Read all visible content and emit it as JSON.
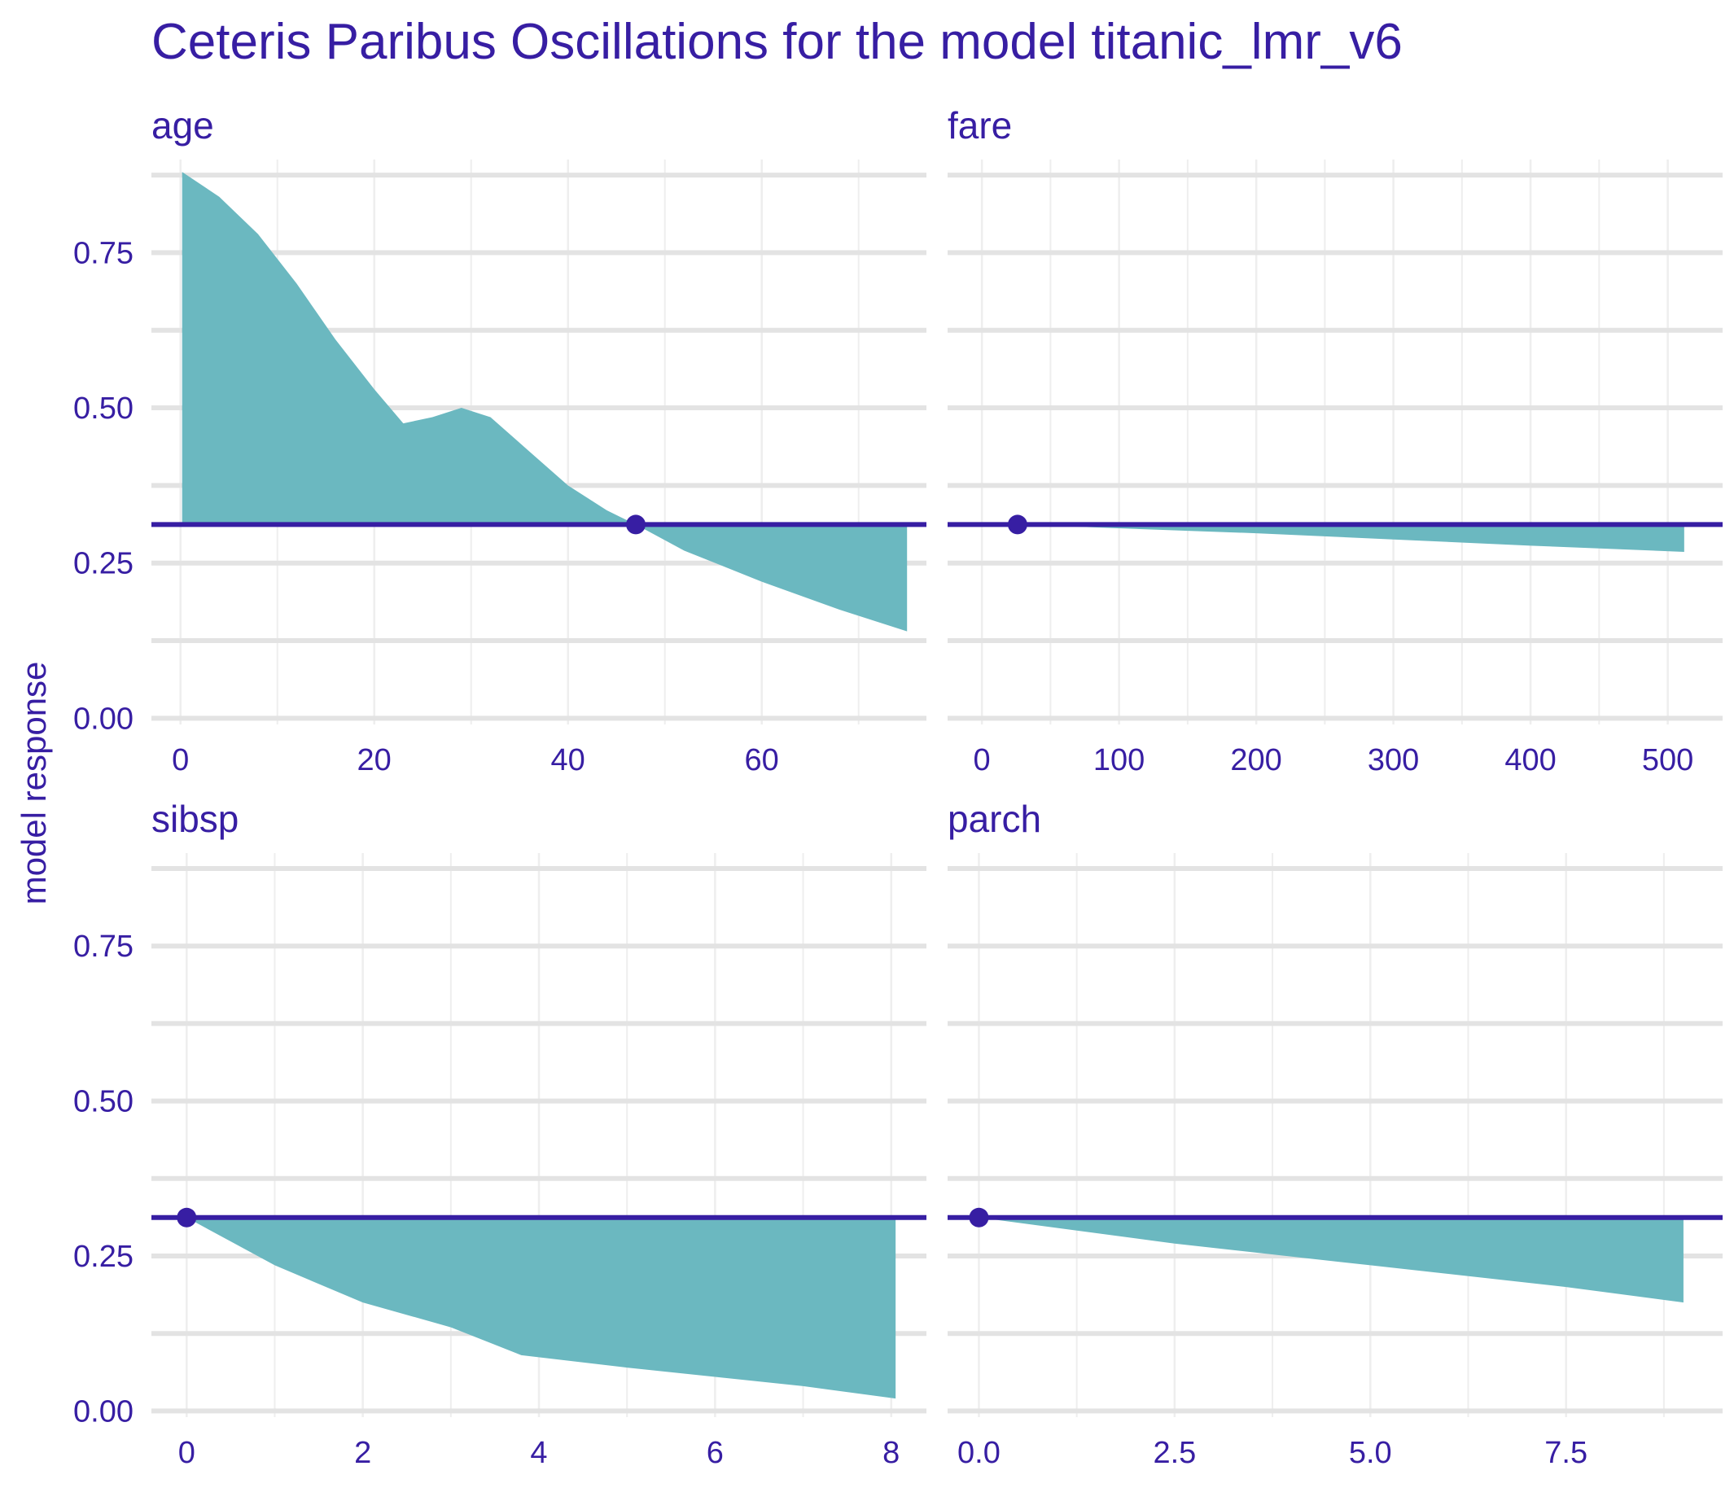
{
  "colors": {
    "text": "#371ea3",
    "area": "#6bb8c0",
    "line": "#371ea3",
    "grid_major": "#e3e3e3",
    "grid_minor": "#eeeeee"
  },
  "chart_data": {
    "type": "area",
    "title": "Ceteris Paribus Oscillations for the model titanic_lmr_v6",
    "ylabel": "model response",
    "baseline": 0.312,
    "ylim": [
      -0.01,
      0.9
    ],
    "y_ticks": [
      0,
      0.25,
      0.5,
      0.75
    ],
    "y_tick_labels": [
      "0.00",
      "0.25",
      "0.50",
      "0.75"
    ],
    "legend": "none",
    "grid": true,
    "panels": [
      {
        "variable": "age",
        "xlim": [
          -3,
          77
        ],
        "x_ticks": [
          0,
          20,
          40,
          60
        ],
        "x_tick_labels": [
          "0",
          "20",
          "40",
          "60"
        ],
        "observation": {
          "x": 47,
          "y": 0.312
        },
        "profile": [
          {
            "x": 0.17,
            "y": 0.88
          },
          {
            "x": 4,
            "y": 0.84
          },
          {
            "x": 8,
            "y": 0.78
          },
          {
            "x": 12,
            "y": 0.7
          },
          {
            "x": 16,
            "y": 0.61
          },
          {
            "x": 20,
            "y": 0.53
          },
          {
            "x": 23,
            "y": 0.475
          },
          {
            "x": 26,
            "y": 0.485
          },
          {
            "x": 29,
            "y": 0.5
          },
          {
            "x": 32,
            "y": 0.485
          },
          {
            "x": 36,
            "y": 0.43
          },
          {
            "x": 40,
            "y": 0.375
          },
          {
            "x": 44,
            "y": 0.335
          },
          {
            "x": 47,
            "y": 0.312
          },
          {
            "x": 52,
            "y": 0.27
          },
          {
            "x": 60,
            "y": 0.22
          },
          {
            "x": 68,
            "y": 0.175
          },
          {
            "x": 75,
            "y": 0.14
          }
        ]
      },
      {
        "variable": "fare",
        "xlim": [
          -25,
          540
        ],
        "x_ticks": [
          0,
          100,
          200,
          300,
          400,
          500
        ],
        "x_tick_labels": [
          "0",
          "100",
          "200",
          "300",
          "400",
          "500"
        ],
        "observation": {
          "x": 26,
          "y": 0.312
        },
        "profile": [
          {
            "x": 26,
            "y": 0.312
          },
          {
            "x": 100,
            "y": 0.306
          },
          {
            "x": 200,
            "y": 0.298
          },
          {
            "x": 300,
            "y": 0.288
          },
          {
            "x": 400,
            "y": 0.278
          },
          {
            "x": 512,
            "y": 0.268
          }
        ]
      },
      {
        "variable": "sibsp",
        "xlim": [
          -0.4,
          8.4
        ],
        "x_ticks": [
          0,
          2,
          4,
          6,
          8
        ],
        "x_tick_labels": [
          "0",
          "2",
          "4",
          "6",
          "8"
        ],
        "observation": {
          "x": 0,
          "y": 0.312
        },
        "profile": [
          {
            "x": 0,
            "y": 0.312
          },
          {
            "x": 1,
            "y": 0.235
          },
          {
            "x": 2,
            "y": 0.175
          },
          {
            "x": 3,
            "y": 0.135
          },
          {
            "x": 3.8,
            "y": 0.09
          },
          {
            "x": 5,
            "y": 0.07
          },
          {
            "x": 6,
            "y": 0.055
          },
          {
            "x": 7,
            "y": 0.04
          },
          {
            "x": 8.05,
            "y": 0.02
          }
        ]
      },
      {
        "variable": "parch",
        "xlim": [
          -0.4,
          9.5
        ],
        "x_ticks": [
          0,
          2.5,
          5,
          7.5
        ],
        "x_tick_labels": [
          "0.0",
          "2.5",
          "5.0",
          "7.5"
        ],
        "observation": {
          "x": 0,
          "y": 0.312
        },
        "profile": [
          {
            "x": 0,
            "y": 0.312
          },
          {
            "x": 2.5,
            "y": 0.27
          },
          {
            "x": 5,
            "y": 0.235
          },
          {
            "x": 7.5,
            "y": 0.2
          },
          {
            "x": 9,
            "y": 0.175
          }
        ]
      }
    ]
  }
}
